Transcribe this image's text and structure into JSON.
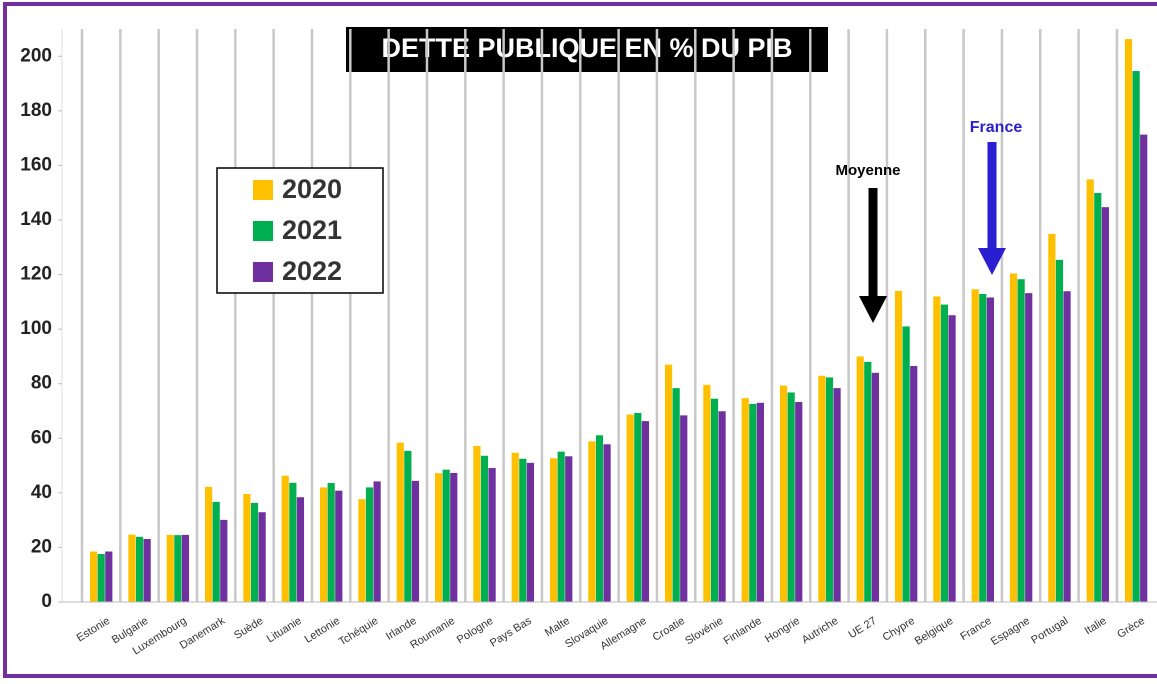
{
  "chart_data": {
    "type": "bar",
    "title": "DETTE PUBLIQUE EN % DU PIB",
    "categories": [
      "Estonie",
      "Bulgarie",
      "Luxembourg",
      "Danemark",
      "Suède",
      "Lituanie",
      "Lettonie",
      "Tchéquie",
      "Irlande",
      "Roumanie",
      "Pologne",
      "Pays Bas",
      "Malte",
      "Slovaquie",
      "Allemagne",
      "Croatie",
      "Slovénie",
      "Finlande",
      "Hongrie",
      "Autriche",
      "UE 27",
      "Chypre",
      "Belgique",
      "France",
      "Espagne",
      "Portugal",
      "Italie",
      "Grèce"
    ],
    "series": [
      {
        "name": "2020",
        "color": "#ffc000",
        "values": [
          18.5,
          24.7,
          24.6,
          42.2,
          39.6,
          46.3,
          42.0,
          37.7,
          58.4,
          47.2,
          57.2,
          54.7,
          52.7,
          58.9,
          68.7,
          87.0,
          79.6,
          74.7,
          79.3,
          82.9,
          90.0,
          114.0,
          112.0,
          114.6,
          120.4,
          134.9,
          154.9,
          206.3
        ]
      },
      {
        "name": "2021",
        "color": "#00b050",
        "values": [
          17.6,
          23.9,
          24.5,
          36.7,
          36.3,
          43.7,
          43.6,
          42.0,
          55.4,
          48.5,
          53.6,
          52.5,
          55.1,
          61.1,
          69.3,
          78.4,
          74.5,
          72.6,
          76.8,
          82.3,
          88.0,
          101.0,
          109.0,
          112.9,
          118.3,
          125.4,
          149.9,
          194.6
        ]
      },
      {
        "name": "2022",
        "color": "#7030a0",
        "values": [
          18.5,
          23.1,
          24.6,
          30.1,
          32.9,
          38.4,
          40.8,
          44.2,
          44.4,
          47.3,
          49.1,
          51.0,
          53.4,
          57.8,
          66.3,
          68.4,
          69.9,
          73.0,
          73.3,
          78.4,
          84.0,
          86.5,
          105.1,
          111.6,
          113.2,
          113.9,
          144.7,
          171.3
        ]
      }
    ],
    "ylim": [
      0,
      210
    ],
    "yticks": [
      0,
      20,
      40,
      60,
      80,
      100,
      120,
      140,
      160,
      180,
      200
    ],
    "annotations": [
      "Moyenne",
      "France"
    ]
  }
}
